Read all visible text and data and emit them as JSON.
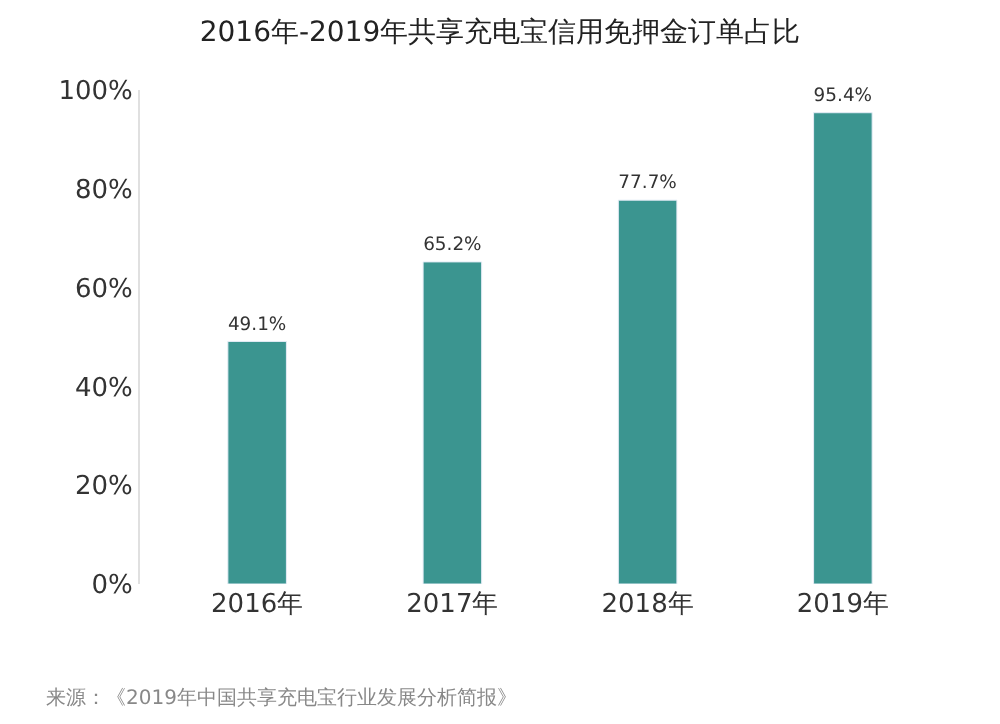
{
  "chart_data": {
    "type": "bar",
    "title": "2016年-2019年共享充电宝信用免押金订单占比",
    "categories": [
      "2016年",
      "2017年",
      "2018年",
      "2019年"
    ],
    "values": [
      49.1,
      65.2,
      77.7,
      95.4
    ],
    "color": "#3b9590",
    "value_labels": [
      "49.1%",
      "65.2%",
      "77.7%",
      "95.4%"
    ],
    "ylim": [
      0,
      100
    ],
    "yticks": [
      {
        "value": 0,
        "label": "0%"
      },
      {
        "value": 20,
        "label": "20%"
      },
      {
        "value": 40,
        "label": "40%"
      },
      {
        "value": 60,
        "label": "60%"
      },
      {
        "value": 80,
        "label": "80%"
      },
      {
        "value": 100,
        "label": "100%"
      }
    ],
    "annotations": [
      "来源：《2019年中国共享充电宝行业发展分析简报》"
    ]
  }
}
